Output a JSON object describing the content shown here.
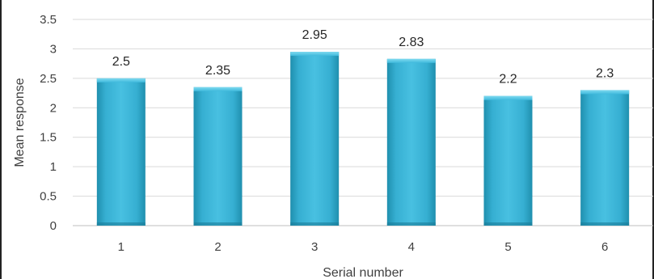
{
  "chart_data": {
    "type": "bar",
    "title": "",
    "xlabel": "Serial number",
    "ylabel": "Mean response",
    "categories": [
      "1",
      "2",
      "3",
      "4",
      "5",
      "6"
    ],
    "values": [
      2.5,
      2.35,
      2.95,
      2.83,
      2.2,
      2.3
    ],
    "data_labels": [
      "2.5",
      "2.35",
      "2.95",
      "2.83",
      "2.2",
      "2.3"
    ],
    "y_ticks": [
      "0",
      "0.5",
      "1",
      "1.5",
      "2",
      "2.5",
      "3",
      "3.5"
    ],
    "ylim": [
      0,
      3.5
    ],
    "grid": true,
    "legend": "none",
    "bar_color": "#3bb5d8"
  }
}
